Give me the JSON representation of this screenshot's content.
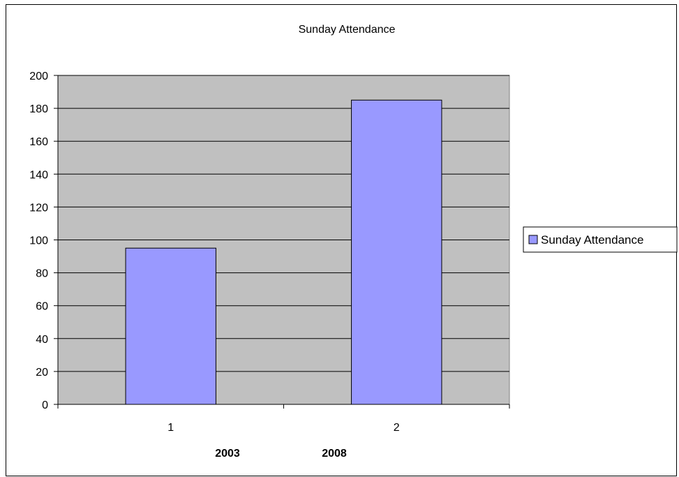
{
  "chart_data": {
    "type": "bar",
    "title": "Sunday Attendance",
    "categories": [
      "1",
      "2"
    ],
    "series": [
      {
        "name": "Sunday Attendance",
        "values": [
          95,
          185
        ]
      }
    ],
    "extra_labels": [
      "2003",
      "2008"
    ],
    "xlabel": "",
    "ylabel": "",
    "ylim": [
      0,
      200
    ],
    "y_ticks": [
      0,
      20,
      40,
      60,
      80,
      100,
      120,
      140,
      160,
      180,
      200
    ],
    "grid": true,
    "legend_position": "right",
    "colors": {
      "plot_background": "#c0c0c0",
      "bar_fill": "#9999ff",
      "bar_stroke": "#000000",
      "gridline": "#000000"
    }
  }
}
